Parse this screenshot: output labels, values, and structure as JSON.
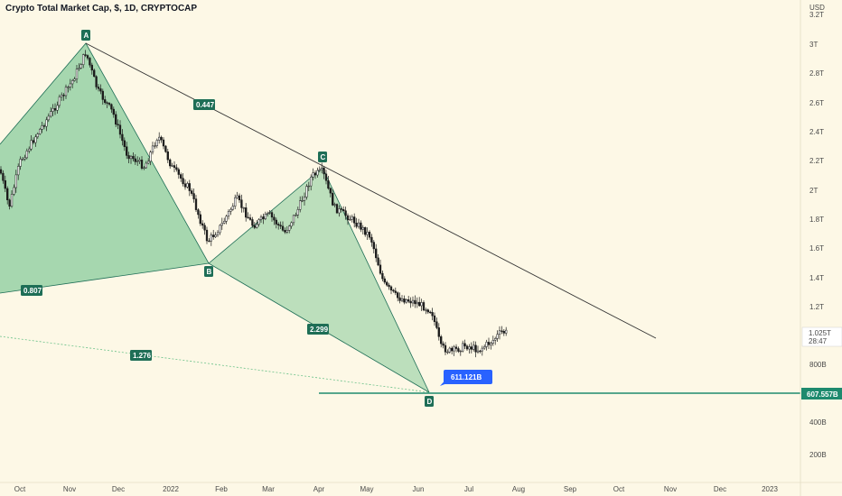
{
  "chart_data": {
    "type": "candlestick",
    "title": "Crypto Total Market Cap, $, 1D, CRYPTOCAP",
    "currency": "USD",
    "y_ticks": [
      "200B",
      "400B",
      "800B",
      "1.2T",
      "1.4T",
      "1.6T",
      "1.8T",
      "2T",
      "2.2T",
      "2.4T",
      "2.6T",
      "2.8T",
      "3T",
      "3.2T"
    ],
    "x_ticks": [
      "Oct",
      "Nov",
      "Dec",
      "2022",
      "Feb",
      "Mar",
      "Apr",
      "May",
      "Jun",
      "Jul",
      "Aug",
      "Sep",
      "Oct",
      "Nov",
      "Dec",
      "2023"
    ],
    "last_price": "1.025T",
    "countdown": "28:47",
    "support_level": "607.557B",
    "low_callout": "611.121B",
    "points": [
      "A",
      "B",
      "C",
      "D"
    ],
    "ratios": [
      "0.447",
      "0.807",
      "2.299",
      "1.276"
    ],
    "colors": {
      "background": "#fdf8e6",
      "wedge_fill": "#6cc28a",
      "label_bg": "#1e6e56",
      "support_line": "#1e8a6e",
      "callout_bg": "#2962ff",
      "price_tag_bg": "#ffffff"
    }
  }
}
